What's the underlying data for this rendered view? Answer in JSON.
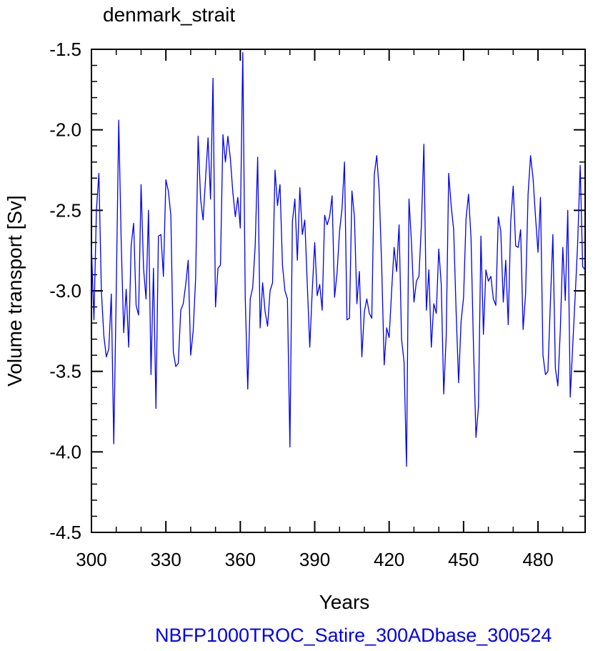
{
  "chart_data": {
    "type": "line",
    "title": "denmark_strait",
    "xlabel": "Years",
    "ylabel": "Volume transport [Sv]",
    "footer": "NBFP1000TROC_Satire_300ADbase_300524",
    "xlim": [
      300,
      499
    ],
    "ylim": [
      -4.5,
      -1.5
    ],
    "xticks": [
      300,
      330,
      360,
      390,
      420,
      450,
      480
    ],
    "xtick_labels": [
      "300",
      "330",
      "360",
      "390",
      "420",
      "450",
      "480"
    ],
    "yticks": [
      -1.5,
      -2.0,
      -2.5,
      -3.0,
      -3.5,
      -4.0,
      -4.5
    ],
    "ytick_labels": [
      "-1.5",
      "-2.0",
      "-2.5",
      "-3.0",
      "-3.5",
      "-4.0",
      "-4.5"
    ],
    "grid": false,
    "colors": {
      "line": "#0000ee",
      "footer": "#0000ee",
      "axis": "#000000"
    },
    "series": [
      {
        "start_year": 300,
        "values": [
          -2.72,
          -3.18,
          -2.5,
          -2.27,
          -3.0,
          -3.28,
          -3.41,
          -3.36,
          -3.02,
          -3.95,
          -3.0,
          -1.94,
          -2.7,
          -3.26,
          -2.99,
          -3.35,
          -2.72,
          -2.58,
          -3.09,
          -3.15,
          -2.34,
          -2.86,
          -3.05,
          -2.5,
          -3.52,
          -2.86,
          -3.73,
          -2.66,
          -2.65,
          -2.91,
          -2.31,
          -2.38,
          -2.53,
          -3.38,
          -3.47,
          -3.45,
          -3.12,
          -3.08,
          -2.96,
          -2.81,
          -3.4,
          -3.25,
          -2.92,
          -2.04,
          -2.43,
          -2.56,
          -2.3,
          -2.05,
          -2.43,
          -1.68,
          -3.1,
          -2.86,
          -2.84,
          -2.03,
          -2.2,
          -2.04,
          -2.18,
          -2.39,
          -2.54,
          -2.42,
          -2.61,
          -1.52,
          -3.05,
          -3.61,
          -3.05,
          -2.98,
          -2.72,
          -2.17,
          -3.23,
          -2.95,
          -3.13,
          -3.22,
          -3.0,
          -2.95,
          -2.25,
          -2.47,
          -2.34,
          -2.84,
          -3.0,
          -3.05,
          -3.97,
          -2.57,
          -2.43,
          -2.81,
          -2.36,
          -2.65,
          -2.56,
          -2.96,
          -3.35,
          -3.0,
          -2.7,
          -3.03,
          -2.96,
          -3.12,
          -2.53,
          -2.59,
          -2.54,
          -2.41,
          -3.04,
          -2.89,
          -2.63,
          -2.49,
          -2.2,
          -3.18,
          -3.17,
          -2.38,
          -2.54,
          -3.08,
          -2.88,
          -3.41,
          -3.13,
          -3.05,
          -3.14,
          -3.17,
          -2.28,
          -2.16,
          -2.38,
          -2.85,
          -3.46,
          -3.23,
          -3.29,
          -3.0,
          -2.73,
          -2.88,
          -2.59,
          -3.3,
          -3.44,
          -4.09,
          -2.43,
          -2.7,
          -3.07,
          -2.94,
          -2.91,
          -2.59,
          -2.09,
          -3.12,
          -2.87,
          -3.35,
          -3.08,
          -3.14,
          -2.74,
          -2.96,
          -3.64,
          -3.28,
          -2.27,
          -2.47,
          -2.62,
          -3.13,
          -3.57,
          -3.19,
          -3.04,
          -2.55,
          -2.4,
          -2.67,
          -3.35,
          -3.91,
          -3.72,
          -2.66,
          -3.27,
          -2.87,
          -2.94,
          -2.91,
          -3.05,
          -3.09,
          -2.54,
          -2.63,
          -3.07,
          -2.81,
          -3.21,
          -2.57,
          -2.35,
          -2.72,
          -2.73,
          -2.62,
          -3.24,
          -3.02,
          -2.4,
          -2.16,
          -2.3,
          -2.54,
          -2.76,
          -2.42,
          -3.4,
          -3.52,
          -3.5,
          -3.07,
          -2.65,
          -3.48,
          -3.59,
          -3.24,
          -2.73,
          -3.06,
          -2.5,
          -3.66,
          -3.34,
          -3.03,
          -2.7,
          -2.22,
          -2.85,
          -2.87
        ]
      }
    ]
  }
}
